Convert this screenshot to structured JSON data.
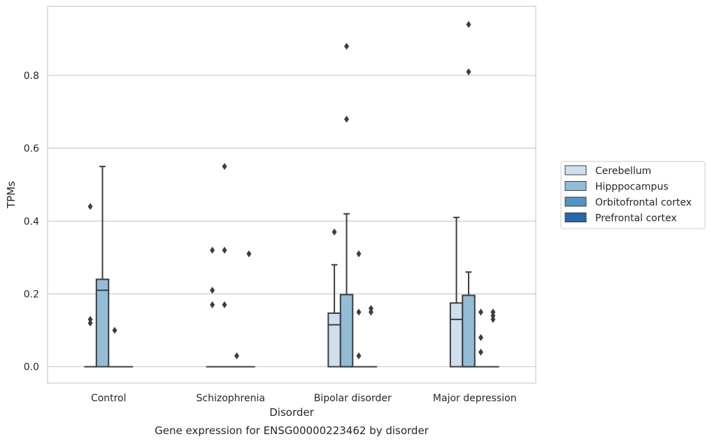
{
  "chart_data": {
    "type": "box",
    "title": "Gene expression for ENSG00000223462 by disorder",
    "xlabel": "Disorder",
    "ylabel": "TPMs",
    "ylim": [
      -0.045,
      0.99
    ],
    "y_ticks": [
      0.0,
      0.2,
      0.4,
      0.6,
      0.8
    ],
    "y_tick_labels": [
      "0.0",
      "0.2",
      "0.4",
      "0.6",
      "0.8"
    ],
    "grid": true,
    "legend_position": "right",
    "categories": [
      "Control",
      "Schizophrenia",
      "Bipolar disorder",
      "Major depression"
    ],
    "series": [
      {
        "name": "Cerebellum",
        "color": "#cfdfee",
        "boxes": [
          {
            "q1": 0,
            "median": 0,
            "q3": 0,
            "whisker_low": 0,
            "whisker_high": 0,
            "outliers": [
              0.44,
              0.13,
              0.12
            ]
          },
          {
            "q1": 0,
            "median": 0,
            "q3": 0,
            "whisker_low": 0,
            "whisker_high": 0,
            "outliers": [
              0.32,
              0.21,
              0.17
            ]
          },
          {
            "q1": 0,
            "median": 0.115,
            "q3": 0.147,
            "whisker_low": 0,
            "whisker_high": 0.28,
            "outliers": [
              0.37
            ]
          },
          {
            "q1": 0,
            "median": 0.13,
            "q3": 0.175,
            "whisker_low": 0,
            "whisker_high": 0.41,
            "outliers": []
          }
        ]
      },
      {
        "name": "Hipppocampus",
        "color": "#93bdd6",
        "boxes": [
          {
            "q1": 0,
            "median": 0.21,
            "q3": 0.24,
            "whisker_low": 0,
            "whisker_high": 0.55,
            "outliers": []
          },
          {
            "q1": 0,
            "median": 0,
            "q3": 0,
            "whisker_low": 0,
            "whisker_high": 0,
            "outliers": [
              0.55,
              0.32,
              0.17
            ]
          },
          {
            "q1": 0,
            "median": 0,
            "q3": 0.198,
            "whisker_low": 0,
            "whisker_high": 0.42,
            "outliers": [
              0.88,
              0.68
            ]
          },
          {
            "q1": 0,
            "median": 0,
            "q3": 0.196,
            "whisker_low": 0,
            "whisker_high": 0.26,
            "outliers": [
              0.94,
              0.81
            ]
          }
        ]
      },
      {
        "name": "Orbitofrontal cortex",
        "color": "#5294c3",
        "boxes": [
          {
            "q1": 0,
            "median": 0,
            "q3": 0,
            "whisker_low": 0,
            "whisker_high": 0,
            "outliers": [
              0.1
            ]
          },
          {
            "q1": 0,
            "median": 0,
            "q3": 0,
            "whisker_low": 0,
            "whisker_high": 0,
            "outliers": [
              0.03
            ]
          },
          {
            "q1": 0,
            "median": 0,
            "q3": 0,
            "whisker_low": 0,
            "whisker_high": 0,
            "outliers": [
              0.31,
              0.15,
              0.03
            ]
          },
          {
            "q1": 0,
            "median": 0,
            "q3": 0,
            "whisker_low": 0,
            "whisker_high": 0,
            "outliers": [
              0.15,
              0.08,
              0.04
            ]
          }
        ]
      },
      {
        "name": "Prefrontal cortex",
        "color": "#2268aa",
        "boxes": [
          {
            "q1": 0,
            "median": 0,
            "q3": 0,
            "whisker_low": 0,
            "whisker_high": 0,
            "outliers": []
          },
          {
            "q1": 0,
            "median": 0,
            "q3": 0,
            "whisker_low": 0,
            "whisker_high": 0,
            "outliers": [
              0.31
            ]
          },
          {
            "q1": 0,
            "median": 0,
            "q3": 0,
            "whisker_low": 0,
            "whisker_high": 0,
            "outliers": [
              0.16,
              0.15
            ]
          },
          {
            "q1": 0,
            "median": 0,
            "q3": 0,
            "whisker_low": 0,
            "whisker_high": 0,
            "outliers": [
              0.15,
              0.14,
              0.13
            ]
          }
        ]
      }
    ]
  }
}
